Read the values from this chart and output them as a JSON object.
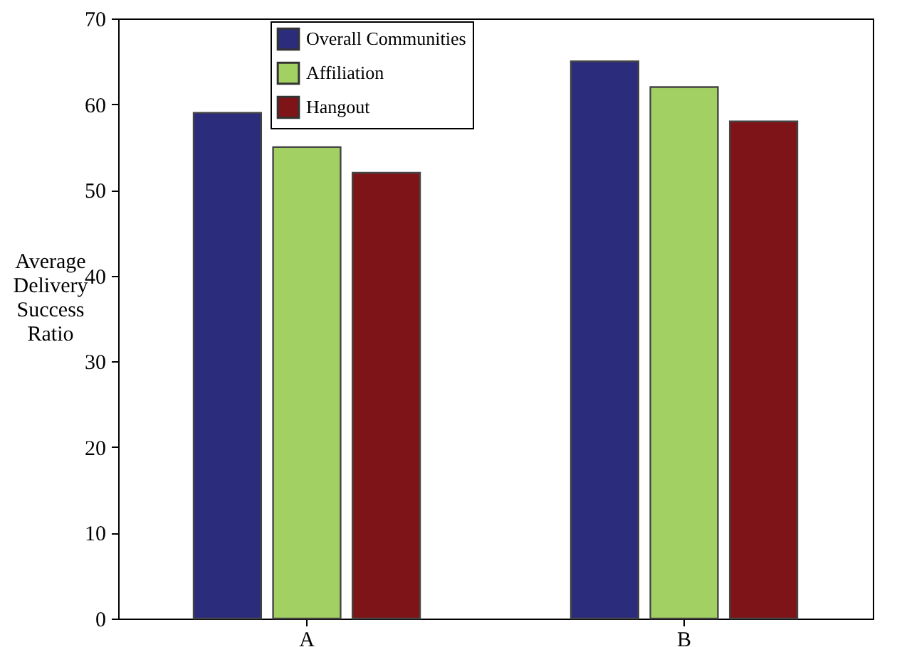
{
  "chart_data": {
    "type": "bar",
    "ylabel": "Average Delivery Success Ratio",
    "categories": [
      "A",
      "B"
    ],
    "series": [
      {
        "name": "Overall Communities",
        "color": "#2b2d7c",
        "values": [
          59,
          65
        ]
      },
      {
        "name": "Affiliation",
        "color": "#a3d063",
        "values": [
          55,
          62
        ]
      },
      {
        "name": "Hangout",
        "color": "#7f1418",
        "values": [
          52,
          58
        ]
      }
    ],
    "ylim": [
      0,
      70
    ],
    "yticks": [
      0,
      10,
      20,
      30,
      40,
      50,
      60,
      70
    ],
    "legend": "top left"
  }
}
